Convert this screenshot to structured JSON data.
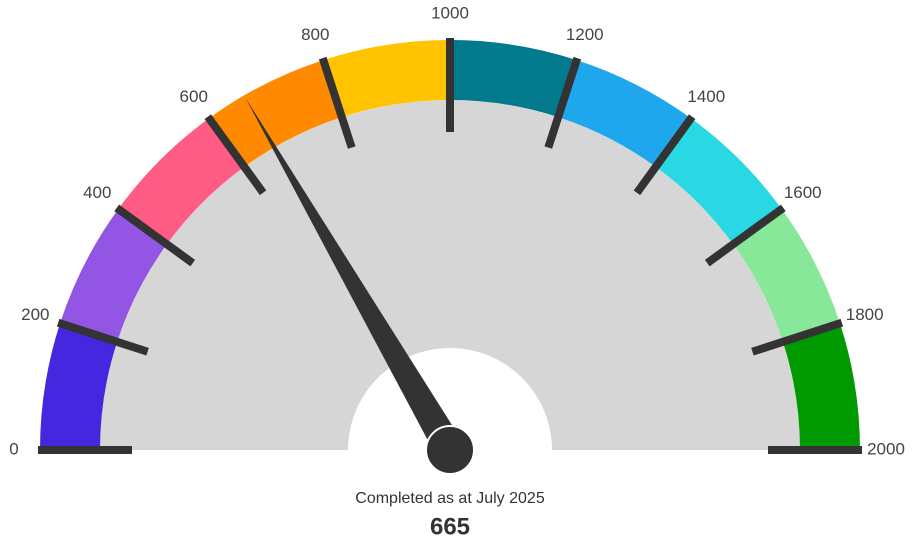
{
  "chart_data": {
    "type": "gauge",
    "caption": "Completed as at July 2025",
    "value": 665,
    "ylim": [
      0,
      2000
    ],
    "yticks": [
      0,
      200,
      400,
      600,
      800,
      1000,
      1200,
      1400,
      1600,
      1800,
      2000
    ],
    "bands": [
      {
        "from": 0,
        "to": 200,
        "color": "#4527e0"
      },
      {
        "from": 200,
        "to": 400,
        "color": "#9255e4"
      },
      {
        "from": 400,
        "to": 600,
        "color": "#ff5c85"
      },
      {
        "from": 600,
        "to": 800,
        "color": "#ff8a00"
      },
      {
        "from": 800,
        "to": 1000,
        "color": "#ffc300"
      },
      {
        "from": 1000,
        "to": 1200,
        "color": "#007a8c"
      },
      {
        "from": 1200,
        "to": 1400,
        "color": "#1ea7ec"
      },
      {
        "from": 1400,
        "to": 1600,
        "color": "#2ad8e4"
      },
      {
        "from": 1600,
        "to": 1800,
        "color": "#88e89a"
      },
      {
        "from": 1800,
        "to": 2000,
        "color": "#009900"
      }
    ],
    "track_color": "#d6d6d6",
    "needle_color": "#333333"
  }
}
